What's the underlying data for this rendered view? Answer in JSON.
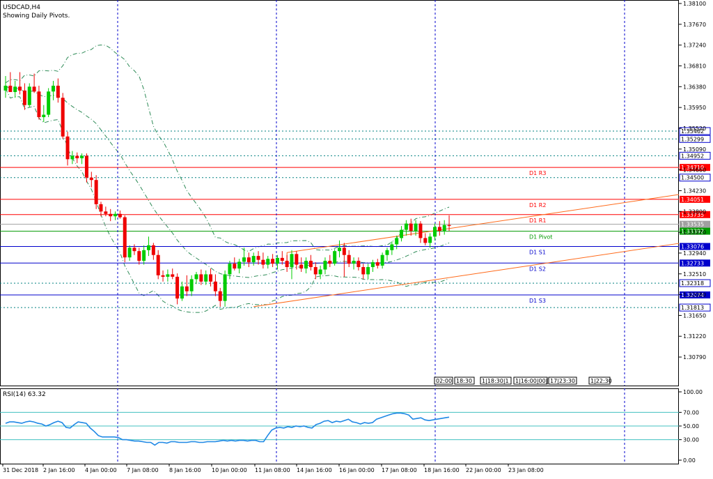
{
  "chart_data": {
    "type": "candlestick",
    "symbol_label": "USDCAD,H4",
    "subtitle": "Showing Daily Pivots.",
    "price_axis": {
      "range": [
        1.302,
        1.381
      ],
      "ticks": [
        "1.38100",
        "1.37670",
        "1.37240",
        "1.36810",
        "1.36380",
        "1.35950",
        "1.35520",
        "1.35090",
        "1.34660",
        "1.34230",
        "1.33800",
        "1.33370",
        "1.32940",
        "1.32510",
        "1.32080",
        "1.31650",
        "1.31220",
        "1.30790"
      ]
    },
    "time_axis": {
      "labels": [
        "31 Dec 2018",
        "2 Jan 16:00",
        "4 Jan 00:00",
        "7 Jan 08:00",
        "8 Jan 16:00",
        "10 Jan 00:00",
        "11 Jan 08:00",
        "14 Jan 16:00",
        "16 Jan 00:00",
        "17 Jan 08:00",
        "18 Jan 16:00",
        "22 Jan 00:00",
        "23 Jan 08:00"
      ],
      "period_markers": [
        "02:00",
        "18:30",
        "1|18:30|1",
        "1|16:00|00|1",
        "17|23:30",
        "1|22:30"
      ]
    },
    "pivot_levels": [
      {
        "label": "D1 R3",
        "value": 1.3471,
        "value_label": "1.34710",
        "color": "#ff0000"
      },
      {
        "label": "D1 R2",
        "value": 1.34051,
        "value_label": "1.34051",
        "color": "#ff0000"
      },
      {
        "label": "D1 R1",
        "value": 1.33735,
        "value_label": "1.33735",
        "color": "#ff0000"
      },
      {
        "label": "D1 Pivot",
        "value": 1.33392,
        "value_label": "1.33392",
        "color": "#009900"
      },
      {
        "label": "D1 S1",
        "value": 1.33076,
        "value_label": "1.33076",
        "color": "#0000cc"
      },
      {
        "label": "D1 S2",
        "value": 1.32733,
        "value_label": "1.32733",
        "color": "#0000cc"
      },
      {
        "label": "D1 S3",
        "value": 1.32074,
        "value_label": "1.32074",
        "color": "#0000cc"
      }
    ],
    "dotted_levels": [
      {
        "value": 1.35462,
        "value_label": "1.35462"
      },
      {
        "value": 1.35299,
        "value_label": "1.35299"
      },
      {
        "value": 1.34952,
        "value_label": "1.34952"
      },
      {
        "value": 1.345,
        "value_label": "1.34500"
      },
      {
        "value": 1.32318,
        "value_label": "1.32318"
      },
      {
        "value": 1.31813,
        "value_label": "1.31813"
      }
    ],
    "current_price": {
      "value": 1.33535,
      "value_label": "1.33535"
    },
    "candles": [
      {
        "o": 1.363,
        "h": 1.366,
        "l": 1.3615,
        "c": 1.364
      },
      {
        "o": 1.364,
        "h": 1.3668,
        "l": 1.3628,
        "c": 1.3627
      },
      {
        "o": 1.3627,
        "h": 1.365,
        "l": 1.3615,
        "c": 1.3638
      },
      {
        "o": 1.3638,
        "h": 1.3668,
        "l": 1.3622,
        "c": 1.363
      },
      {
        "o": 1.363,
        "h": 1.3645,
        "l": 1.359,
        "c": 1.36
      },
      {
        "o": 1.36,
        "h": 1.3645,
        "l": 1.3595,
        "c": 1.3638
      },
      {
        "o": 1.3638,
        "h": 1.3665,
        "l": 1.3625,
        "c": 1.3628
      },
      {
        "o": 1.3628,
        "h": 1.364,
        "l": 1.357,
        "c": 1.3575
      },
      {
        "o": 1.3575,
        "h": 1.36,
        "l": 1.3565,
        "c": 1.358
      },
      {
        "o": 1.358,
        "h": 1.3635,
        "l": 1.3575,
        "c": 1.3628
      },
      {
        "o": 1.3628,
        "h": 1.365,
        "l": 1.361,
        "c": 1.364
      },
      {
        "o": 1.364,
        "h": 1.3655,
        "l": 1.3605,
        "c": 1.3615
      },
      {
        "o": 1.3615,
        "h": 1.3625,
        "l": 1.353,
        "c": 1.3535
      },
      {
        "o": 1.3535,
        "h": 1.3545,
        "l": 1.3475,
        "c": 1.3488
      },
      {
        "o": 1.3488,
        "h": 1.3505,
        "l": 1.3478,
        "c": 1.3495
      },
      {
        "o": 1.3495,
        "h": 1.3502,
        "l": 1.348,
        "c": 1.349
      },
      {
        "o": 1.349,
        "h": 1.35,
        "l": 1.3478,
        "c": 1.3495
      },
      {
        "o": 1.3495,
        "h": 1.35,
        "l": 1.344,
        "c": 1.345
      },
      {
        "o": 1.345,
        "h": 1.3462,
        "l": 1.343,
        "c": 1.3445
      },
      {
        "o": 1.3445,
        "h": 1.3455,
        "l": 1.3385,
        "c": 1.3395
      },
      {
        "o": 1.3395,
        "h": 1.34,
        "l": 1.337,
        "c": 1.338
      },
      {
        "o": 1.338,
        "h": 1.339,
        "l": 1.337,
        "c": 1.3375
      },
      {
        "o": 1.3375,
        "h": 1.3385,
        "l": 1.336,
        "c": 1.337
      },
      {
        "o": 1.337,
        "h": 1.338,
        "l": 1.3362,
        "c": 1.3375
      },
      {
        "o": 1.3375,
        "h": 1.3382,
        "l": 1.3365,
        "c": 1.3368
      },
      {
        "o": 1.3368,
        "h": 1.3372,
        "l": 1.3275,
        "c": 1.3285
      },
      {
        "o": 1.3285,
        "h": 1.331,
        "l": 1.3278,
        "c": 1.3305
      },
      {
        "o": 1.3305,
        "h": 1.3312,
        "l": 1.329,
        "c": 1.3298
      },
      {
        "o": 1.3298,
        "h": 1.3305,
        "l": 1.327,
        "c": 1.3278
      },
      {
        "o": 1.3278,
        "h": 1.331,
        "l": 1.327,
        "c": 1.33
      },
      {
        "o": 1.33,
        "h": 1.3328,
        "l": 1.3288,
        "c": 1.331
      },
      {
        "o": 1.331,
        "h": 1.3315,
        "l": 1.328,
        "c": 1.329
      },
      {
        "o": 1.329,
        "h": 1.33,
        "l": 1.324,
        "c": 1.3248
      },
      {
        "o": 1.3248,
        "h": 1.3258,
        "l": 1.3235,
        "c": 1.3245
      },
      {
        "o": 1.3245,
        "h": 1.326,
        "l": 1.3235,
        "c": 1.325
      },
      {
        "o": 1.325,
        "h": 1.3262,
        "l": 1.324,
        "c": 1.3245
      },
      {
        "o": 1.3245,
        "h": 1.3252,
        "l": 1.3188,
        "c": 1.32
      },
      {
        "o": 1.32,
        "h": 1.3235,
        "l": 1.3195,
        "c": 1.3225
      },
      {
        "o": 1.3225,
        "h": 1.3248,
        "l": 1.3205,
        "c": 1.3215
      },
      {
        "o": 1.3215,
        "h": 1.3248,
        "l": 1.3205,
        "c": 1.324
      },
      {
        "o": 1.324,
        "h": 1.3255,
        "l": 1.323,
        "c": 1.325
      },
      {
        "o": 1.325,
        "h": 1.326,
        "l": 1.3228,
        "c": 1.3235
      },
      {
        "o": 1.3235,
        "h": 1.3258,
        "l": 1.3228,
        "c": 1.325
      },
      {
        "o": 1.325,
        "h": 1.3262,
        "l": 1.3225,
        "c": 1.3235
      },
      {
        "o": 1.3235,
        "h": 1.325,
        "l": 1.3205,
        "c": 1.3215
      },
      {
        "o": 1.3215,
        "h": 1.3222,
        "l": 1.3183,
        "c": 1.3195
      },
      {
        "o": 1.3195,
        "h": 1.3258,
        "l": 1.3183,
        "c": 1.325
      },
      {
        "o": 1.325,
        "h": 1.3278,
        "l": 1.324,
        "c": 1.3272
      },
      {
        "o": 1.3272,
        "h": 1.3285,
        "l": 1.3258,
        "c": 1.3262
      },
      {
        "o": 1.3262,
        "h": 1.3282,
        "l": 1.3252,
        "c": 1.3276
      },
      {
        "o": 1.3276,
        "h": 1.3305,
        "l": 1.3268,
        "c": 1.3285
      },
      {
        "o": 1.3285,
        "h": 1.3295,
        "l": 1.3265,
        "c": 1.3275
      },
      {
        "o": 1.3275,
        "h": 1.3295,
        "l": 1.3268,
        "c": 1.3288
      },
      {
        "o": 1.3288,
        "h": 1.3298,
        "l": 1.327,
        "c": 1.328
      },
      {
        "o": 1.328,
        "h": 1.3295,
        "l": 1.3262,
        "c": 1.327
      },
      {
        "o": 1.327,
        "h": 1.3288,
        "l": 1.3262,
        "c": 1.3282
      },
      {
        "o": 1.3282,
        "h": 1.3292,
        "l": 1.3265,
        "c": 1.3272
      },
      {
        "o": 1.3272,
        "h": 1.329,
        "l": 1.326,
        "c": 1.3284
      },
      {
        "o": 1.3284,
        "h": 1.3298,
        "l": 1.327,
        "c": 1.3278
      },
      {
        "o": 1.3278,
        "h": 1.329,
        "l": 1.3255,
        "c": 1.3265
      },
      {
        "o": 1.3265,
        "h": 1.33,
        "l": 1.324,
        "c": 1.3292
      },
      {
        "o": 1.3292,
        "h": 1.3298,
        "l": 1.326,
        "c": 1.327
      },
      {
        "o": 1.327,
        "h": 1.3285,
        "l": 1.3255,
        "c": 1.3262
      },
      {
        "o": 1.3262,
        "h": 1.3285,
        "l": 1.3252,
        "c": 1.3278
      },
      {
        "o": 1.3278,
        "h": 1.329,
        "l": 1.3258,
        "c": 1.3265
      },
      {
        "o": 1.3265,
        "h": 1.3275,
        "l": 1.324,
        "c": 1.325
      },
      {
        "o": 1.325,
        "h": 1.3268,
        "l": 1.324,
        "c": 1.326
      },
      {
        "o": 1.326,
        "h": 1.3285,
        "l": 1.325,
        "c": 1.3278
      },
      {
        "o": 1.3278,
        "h": 1.329,
        "l": 1.3265,
        "c": 1.3272
      },
      {
        "o": 1.3272,
        "h": 1.3302,
        "l": 1.3268,
        "c": 1.3298
      },
      {
        "o": 1.3298,
        "h": 1.332,
        "l": 1.3285,
        "c": 1.3305
      },
      {
        "o": 1.3305,
        "h": 1.3315,
        "l": 1.3245,
        "c": 1.329
      },
      {
        "o": 1.329,
        "h": 1.33,
        "l": 1.3265,
        "c": 1.3272
      },
      {
        "o": 1.3272,
        "h": 1.3285,
        "l": 1.326,
        "c": 1.3278
      },
      {
        "o": 1.3278,
        "h": 1.3285,
        "l": 1.3258,
        "c": 1.3265
      },
      {
        "o": 1.3265,
        "h": 1.3272,
        "l": 1.324,
        "c": 1.325
      },
      {
        "o": 1.325,
        "h": 1.3272,
        "l": 1.324,
        "c": 1.3265
      },
      {
        "o": 1.3265,
        "h": 1.328,
        "l": 1.3255,
        "c": 1.3275
      },
      {
        "o": 1.3275,
        "h": 1.3282,
        "l": 1.3262,
        "c": 1.3268
      },
      {
        "o": 1.3268,
        "h": 1.3295,
        "l": 1.3262,
        "c": 1.329
      },
      {
        "o": 1.329,
        "h": 1.3305,
        "l": 1.3278,
        "c": 1.33
      },
      {
        "o": 1.33,
        "h": 1.3318,
        "l": 1.329,
        "c": 1.3312
      },
      {
        "o": 1.3312,
        "h": 1.333,
        "l": 1.3302,
        "c": 1.3325
      },
      {
        "o": 1.3325,
        "h": 1.335,
        "l": 1.3318,
        "c": 1.3342
      },
      {
        "o": 1.3342,
        "h": 1.3362,
        "l": 1.333,
        "c": 1.3355
      },
      {
        "o": 1.3355,
        "h": 1.3365,
        "l": 1.333,
        "c": 1.334
      },
      {
        "o": 1.334,
        "h": 1.3362,
        "l": 1.333,
        "c": 1.3355
      },
      {
        "o": 1.3355,
        "h": 1.336,
        "l": 1.3315,
        "c": 1.3325
      },
      {
        "o": 1.3325,
        "h": 1.3335,
        "l": 1.331,
        "c": 1.3315
      },
      {
        "o": 1.3315,
        "h": 1.3335,
        "l": 1.3305,
        "c": 1.3328
      },
      {
        "o": 1.3328,
        "h": 1.3355,
        "l": 1.332,
        "c": 1.3348
      },
      {
        "o": 1.3348,
        "h": 1.336,
        "l": 1.333,
        "c": 1.334
      },
      {
        "o": 1.334,
        "h": 1.3362,
        "l": 1.3332,
        "c": 1.3352
      },
      {
        "o": 1.3352,
        "h": 1.3372,
        "l": 1.334,
        "c": 1.335
      }
    ],
    "rsi": {
      "label": "RSI(14) 63.32",
      "range": [
        0,
        100
      ],
      "ticks": [
        "100.00",
        "70.00",
        "50.00",
        "30.00",
        "0.00"
      ],
      "levels": [
        70,
        50,
        30
      ],
      "values": [
        54,
        56,
        56,
        55,
        54,
        56,
        57,
        56,
        54,
        53,
        50,
        52,
        55,
        57,
        55,
        48,
        47,
        52,
        56,
        55,
        54,
        47,
        42,
        36,
        34,
        34,
        34,
        34,
        33,
        30,
        30,
        29,
        28,
        28,
        27,
        26,
        26,
        22,
        26,
        26,
        25,
        27,
        27,
        26,
        26,
        26,
        27,
        27,
        26,
        26,
        27,
        27,
        27,
        28,
        29,
        28,
        29,
        28,
        29,
        29,
        28,
        29,
        29,
        27,
        27,
        36,
        44,
        47,
        48,
        47,
        49,
        48,
        50,
        49,
        50,
        48,
        47,
        52,
        54,
        57,
        58,
        55,
        57,
        56,
        58,
        60,
        56,
        55,
        53,
        55,
        54,
        55,
        60,
        62,
        64,
        66,
        68,
        69,
        69,
        68,
        66,
        60,
        61,
        62,
        59,
        58,
        59,
        60,
        61,
        62,
        63
      ]
    }
  }
}
